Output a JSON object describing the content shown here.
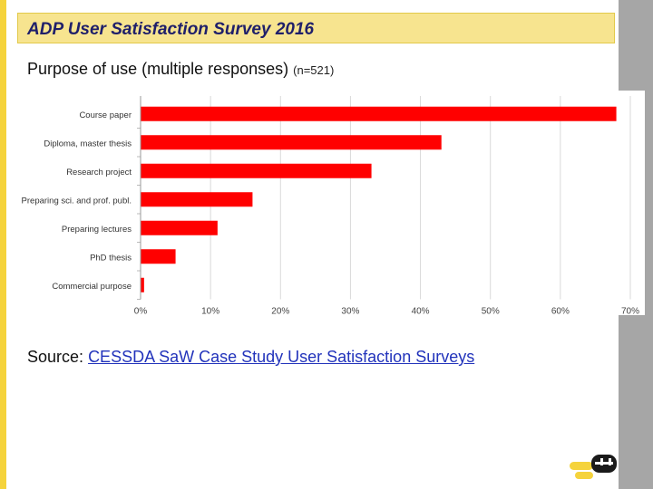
{
  "slide": {
    "title": "ADP User Satisfaction Survey 2016",
    "subtitle": "Purpose of use (multiple responses)",
    "sample": "(n=521)",
    "source_label": "Source:",
    "source_link": "CESSDA SaW Case Study User Satisfaction Surveys"
  },
  "colors": {
    "bar": "#FF0000",
    "accent": "#F5D33C",
    "title_bg": "#F7E48F",
    "title_text": "#1F1F6A",
    "side_panel": "#A6A6A6",
    "grid": "#D9D9D9"
  },
  "logo": {
    "name": "adp-logo-icon"
  },
  "chart_data": {
    "type": "bar",
    "orientation": "horizontal",
    "categories": [
      "Course paper",
      "Diploma, master thesis",
      "Research project",
      "Preparing sci. and prof. publ.",
      "Preparing lectures",
      "PhD thesis",
      "Commercial purpose"
    ],
    "values": [
      68,
      43,
      33,
      16,
      11,
      5,
      0.5
    ],
    "unit": "%",
    "xlim": [
      0,
      70
    ],
    "xticks": [
      0,
      10,
      20,
      30,
      40,
      50,
      60,
      70
    ],
    "xtick_labels": [
      "0%",
      "10%",
      "20%",
      "30%",
      "40%",
      "50%",
      "60%",
      "70%"
    ],
    "grid": true,
    "title": "",
    "xlabel": "",
    "ylabel": ""
  }
}
